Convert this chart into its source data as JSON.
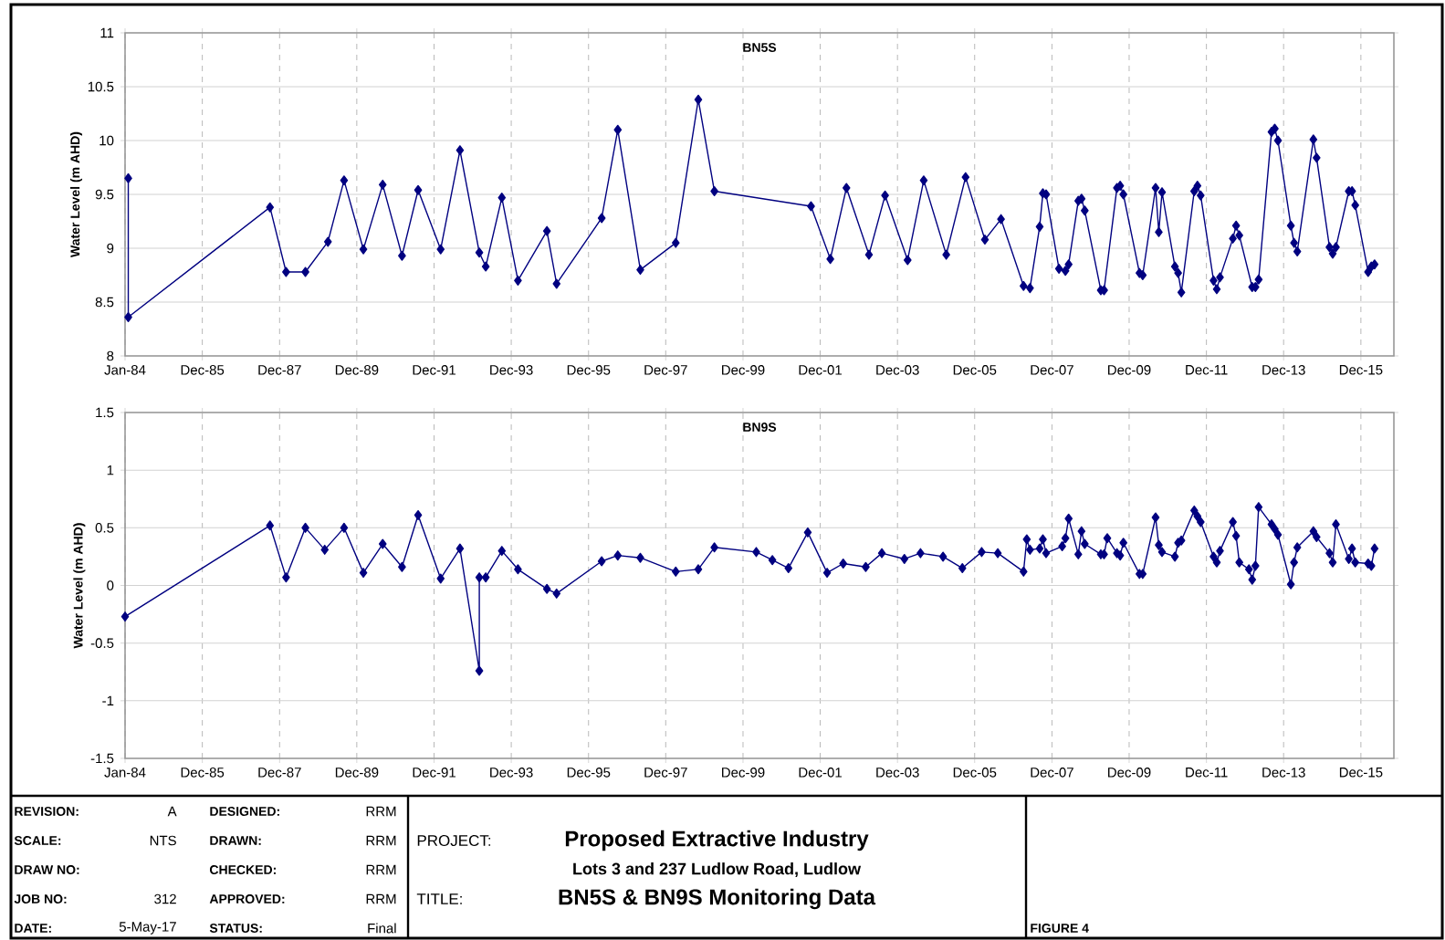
{
  "chart_data": [
    {
      "type": "line",
      "title": "BN5S",
      "ylabel": "Water Level (m AHD)",
      "color": "#000080",
      "marker": "diamond",
      "grid": true,
      "xlim": [
        "1984-01-01",
        "2016-11-01"
      ],
      "ylim": [
        8,
        11
      ],
      "yticks": [
        8,
        8.5,
        9,
        9.5,
        10,
        10.5,
        11
      ],
      "xticks": [
        {
          "value": "1984-01-01",
          "label": "Jan-84"
        },
        {
          "value": "1985-12-31",
          "label": "Dec-85"
        },
        {
          "value": "1987-12-31",
          "label": "Dec-87"
        },
        {
          "value": "1989-12-30",
          "label": "Dec-89"
        },
        {
          "value": "1991-12-30",
          "label": "Dec-91"
        },
        {
          "value": "1993-12-29",
          "label": "Dec-93"
        },
        {
          "value": "1995-12-29",
          "label": "Dec-95"
        },
        {
          "value": "1997-12-28",
          "label": "Dec-97"
        },
        {
          "value": "1999-12-28",
          "label": "Dec-99"
        },
        {
          "value": "2001-12-27",
          "label": "Dec-01"
        },
        {
          "value": "2003-12-27",
          "label": "Dec-03"
        },
        {
          "value": "2005-12-26",
          "label": "Dec-05"
        },
        {
          "value": "2007-12-26",
          "label": "Dec-07"
        },
        {
          "value": "2009-12-25",
          "label": "Dec-09"
        },
        {
          "value": "2011-12-25",
          "label": "Dec-11"
        },
        {
          "value": "2013-12-24",
          "label": "Dec-13"
        },
        {
          "value": "2015-12-24",
          "label": "Dec-15"
        }
      ],
      "x": [
        "1984-02",
        "1984-02",
        "1987-10",
        "1988-03",
        "1988-09",
        "1989-04",
        "1989-09",
        "1990-03",
        "1990-09",
        "1991-03",
        "1991-08",
        "1992-03",
        "1992-09",
        "1993-03",
        "1993-05",
        "1993-10",
        "1994-03",
        "1994-12",
        "1995-03",
        "1996-05",
        "1996-10",
        "1997-05",
        "1998-04",
        "1998-11",
        "1999-04",
        "2001-10",
        "2002-04",
        "2002-09",
        "2003-04",
        "2003-09",
        "2004-04",
        "2004-09",
        "2005-04",
        "2005-10",
        "2006-04",
        "2006-09",
        "2007-04",
        "2007-06",
        "2007-09",
        "2007-10",
        "2007-11",
        "2008-03",
        "2008-05",
        "2008-06",
        "2008-09",
        "2008-10",
        "2008-11",
        "2009-04",
        "2009-05",
        "2009-09",
        "2009-10",
        "2009-11",
        "2010-04",
        "2010-05",
        "2010-09",
        "2010-10",
        "2010-11",
        "2011-03",
        "2011-04",
        "2011-05",
        "2011-09",
        "2011-10",
        "2011-11",
        "2012-03",
        "2012-04",
        "2012-05",
        "2012-09",
        "2012-10",
        "2012-11",
        "2013-03",
        "2013-04",
        "2013-05",
        "2013-09",
        "2013-10",
        "2013-11",
        "2014-03",
        "2014-04",
        "2014-05",
        "2014-10",
        "2014-11",
        "2015-03",
        "2015-04",
        "2015-05",
        "2015-09",
        "2015-10",
        "2015-11",
        "2016-03",
        "2016-04",
        "2016-05"
      ],
      "values": [
        9.65,
        8.36,
        9.38,
        8.78,
        8.78,
        9.06,
        9.63,
        8.99,
        9.59,
        8.93,
        9.54,
        8.99,
        9.91,
        8.96,
        8.83,
        9.47,
        8.7,
        9.16,
        8.67,
        9.28,
        10.1,
        8.8,
        9.05,
        10.38,
        9.53,
        9.39,
        8.9,
        9.56,
        8.94,
        9.49,
        8.89,
        9.63,
        8.94,
        9.66,
        9.08,
        9.27,
        8.65,
        8.63,
        9.2,
        9.51,
        9.5,
        8.81,
        8.79,
        8.85,
        9.44,
        9.46,
        9.35,
        8.61,
        8.61,
        9.56,
        9.58,
        9.5,
        8.77,
        8.75,
        9.56,
        9.15,
        9.52,
        8.83,
        8.77,
        8.59,
        9.53,
        9.58,
        9.49,
        8.7,
        8.62,
        8.73,
        9.09,
        9.21,
        9.12,
        8.64,
        8.64,
        8.71,
        10.08,
        10.11,
        10.0,
        9.21,
        9.05,
        8.97,
        10.01,
        9.84,
        9.01,
        8.95,
        9.01,
        9.53,
        9.53,
        9.4,
        8.78,
        8.83,
        8.85
      ]
    },
    {
      "type": "line",
      "title": "BN9S",
      "ylabel": "Water Level (m AHD)",
      "color": "#000080",
      "marker": "diamond",
      "grid": true,
      "xlim": [
        "1984-01-01",
        "2016-11-01"
      ],
      "ylim": [
        -1.5,
        1.5
      ],
      "yticks": [
        -1.5,
        -1,
        -0.5,
        0,
        0.5,
        1,
        1.5
      ],
      "xticks": [
        {
          "value": "1984-01-01",
          "label": "Jan-84"
        },
        {
          "value": "1985-12-31",
          "label": "Dec-85"
        },
        {
          "value": "1987-12-31",
          "label": "Dec-87"
        },
        {
          "value": "1989-12-30",
          "label": "Dec-89"
        },
        {
          "value": "1991-12-30",
          "label": "Dec-91"
        },
        {
          "value": "1993-12-29",
          "label": "Dec-93"
        },
        {
          "value": "1995-12-29",
          "label": "Dec-95"
        },
        {
          "value": "1997-12-28",
          "label": "Dec-97"
        },
        {
          "value": "1999-12-28",
          "label": "Dec-99"
        },
        {
          "value": "2001-12-27",
          "label": "Dec-01"
        },
        {
          "value": "2003-12-27",
          "label": "Dec-03"
        },
        {
          "value": "2005-12-26",
          "label": "Dec-05"
        },
        {
          "value": "2007-12-26",
          "label": "Dec-07"
        },
        {
          "value": "2009-12-25",
          "label": "Dec-09"
        },
        {
          "value": "2011-12-25",
          "label": "Dec-11"
        },
        {
          "value": "2013-12-24",
          "label": "Dec-13"
        },
        {
          "value": "2015-12-24",
          "label": "Dec-15"
        }
      ],
      "x": [
        "1984-01",
        "1987-10",
        "1988-03",
        "1988-09",
        "1989-03",
        "1989-09",
        "1990-03",
        "1990-09",
        "1991-03",
        "1991-08",
        "1992-03",
        "1992-09",
        "1993-03",
        "1993-03",
        "1993-05",
        "1993-10",
        "1994-03",
        "1994-12",
        "1995-03",
        "1996-05",
        "1996-10",
        "1997-05",
        "1998-04",
        "1998-11",
        "1999-04",
        "2000-05",
        "2000-10",
        "2001-03",
        "2001-09",
        "2002-03",
        "2002-08",
        "2003-03",
        "2003-08",
        "2004-03",
        "2004-08",
        "2005-03",
        "2005-09",
        "2006-03",
        "2006-08",
        "2007-04",
        "2007-05",
        "2007-06",
        "2007-09",
        "2007-10",
        "2007-11",
        "2008-04",
        "2008-05",
        "2008-06",
        "2008-09",
        "2008-10",
        "2008-11",
        "2009-04",
        "2009-05",
        "2009-06",
        "2009-09",
        "2009-10",
        "2009-11",
        "2010-04",
        "2010-05",
        "2010-09",
        "2010-10",
        "2010-11",
        "2011-03",
        "2011-04",
        "2011-05",
        "2011-09",
        "2011-10",
        "2011-11",
        "2012-03",
        "2012-04",
        "2012-05",
        "2012-09",
        "2012-10",
        "2012-11",
        "2013-02",
        "2013-03",
        "2013-04",
        "2013-05",
        "2013-09",
        "2013-10",
        "2013-11",
        "2014-03",
        "2014-04",
        "2014-05",
        "2014-10",
        "2014-11",
        "2015-03",
        "2015-04",
        "2015-05",
        "2015-09",
        "2015-10",
        "2015-11",
        "2016-03",
        "2016-04",
        "2016-05"
      ],
      "values": [
        -0.27,
        0.52,
        0.07,
        0.5,
        0.31,
        0.5,
        0.11,
        0.36,
        0.16,
        0.61,
        0.06,
        0.32,
        -0.74,
        0.07,
        0.07,
        0.3,
        0.14,
        -0.03,
        -0.07,
        0.21,
        0.26,
        0.24,
        0.12,
        0.14,
        0.33,
        0.29,
        0.22,
        0.15,
        0.46,
        0.11,
        0.19,
        0.16,
        0.28,
        0.23,
        0.28,
        0.25,
        0.15,
        0.29,
        0.28,
        0.12,
        0.4,
        0.31,
        0.32,
        0.4,
        0.28,
        0.34,
        0.41,
        0.58,
        0.27,
        0.47,
        0.36,
        0.27,
        0.27,
        0.41,
        0.28,
        0.26,
        0.37,
        0.1,
        0.1,
        0.59,
        0.35,
        0.29,
        0.25,
        0.37,
        0.39,
        0.65,
        0.6,
        0.55,
        0.25,
        0.2,
        0.3,
        0.55,
        0.43,
        0.2,
        0.14,
        0.05,
        0.17,
        0.68,
        0.53,
        0.49,
        0.44,
        0.01,
        0.2,
        0.33,
        0.47,
        0.42,
        0.28,
        0.2,
        0.53,
        0.23,
        0.32,
        0.2,
        0.19,
        0.17,
        0.32
      ]
    },
    {
      "type": "other",
      "annotations": [
        "REVISION:",
        "A",
        "DESIGNED:",
        "RRM",
        "SCALE:",
        "NTS",
        "DRAWN:",
        "RRM",
        "DRAW NO:",
        "CHECKED:",
        "RRM",
        "JOB NO:",
        "312",
        "APPROVED:",
        "RRM",
        "DATE:",
        "5-May-17",
        "STATUS:",
        "Final",
        "PROJECT:",
        "Proposed Extractive Industry",
        "Lots 3 and 237 Ludlow Road, Ludlow",
        "TITLE:",
        "BN5S & BN9S Monitoring Data",
        "FIGURE 4"
      ]
    }
  ]
}
